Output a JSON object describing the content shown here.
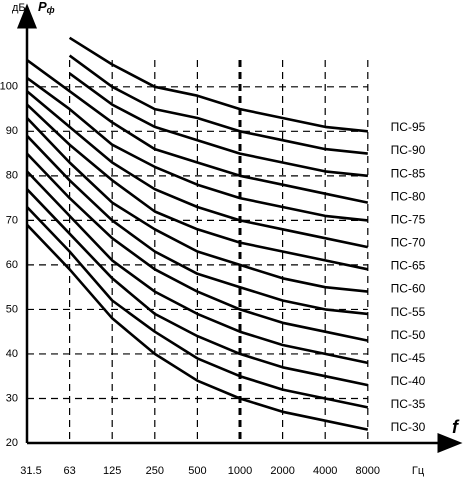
{
  "chart_data": {
    "type": "line",
    "y_unit": "дБ",
    "y_symbol": "P",
    "y_symbol_sub": "ф",
    "x_symbol": "f",
    "x_unit": "Гц",
    "categories": [
      "31.5",
      "63",
      "125",
      "250",
      "500",
      "1000",
      "2000",
      "4000",
      "8000"
    ],
    "ylim": [
      20,
      115
    ],
    "yticks": [
      20,
      30,
      40,
      50,
      60,
      70,
      80,
      90,
      100
    ],
    "grid": true,
    "series": [
      {
        "name": "ПС-95",
        "color": "#000000",
        "values": [
          null,
          111,
          105,
          100,
          98,
          95,
          93,
          91,
          90
        ]
      },
      {
        "name": "ПС-90",
        "color": "#000000",
        "values": [
          null,
          107,
          100,
          95,
          93,
          90,
          88,
          86,
          85
        ]
      },
      {
        "name": "ПС-85",
        "color": "#000000",
        "values": [
          null,
          103,
          96,
          91,
          88,
          85,
          83,
          81,
          80
        ]
      },
      {
        "name": "ПС-80",
        "color": "#000000",
        "values": [
          106,
          99,
          92,
          86,
          83,
          80,
          78,
          76,
          74
        ]
      },
      {
        "name": "ПС-75",
        "color": "#000000",
        "values": [
          102,
          95,
          87,
          82,
          78,
          75,
          73,
          71,
          70
        ]
      },
      {
        "name": "ПС-70",
        "color": "#000000",
        "values": [
          99,
          91,
          83,
          77,
          73,
          70,
          68,
          66,
          64
        ]
      },
      {
        "name": "ПС-65",
        "color": "#000000",
        "values": [
          96,
          87,
          79,
          72,
          68,
          65,
          63,
          61,
          59
        ]
      },
      {
        "name": "ПС-60",
        "color": "#000000",
        "values": [
          93,
          83,
          74,
          68,
          63,
          60,
          57,
          55,
          54
        ]
      },
      {
        "name": "ПС-55",
        "color": "#000000",
        "values": [
          89,
          79,
          70,
          63,
          58,
          55,
          52,
          50,
          49
        ]
      },
      {
        "name": "ПС-50",
        "color": "#000000",
        "values": [
          85,
          75,
          66,
          59,
          54,
          50,
          47,
          45,
          43
        ]
      },
      {
        "name": "ПС-45",
        "color": "#000000",
        "values": [
          81,
          71,
          61,
          54,
          49,
          45,
          42,
          40,
          38
        ]
      },
      {
        "name": "ПС-40",
        "color": "#000000",
        "values": [
          77,
          67,
          57,
          49,
          44,
          40,
          37,
          35,
          33
        ]
      },
      {
        "name": "ПС-35",
        "color": "#000000",
        "values": [
          73,
          63,
          52,
          45,
          39,
          35,
          32,
          30,
          28
        ]
      },
      {
        "name": "ПС-30",
        "color": "#000000",
        "values": [
          69,
          59,
          48,
          40,
          34,
          30,
          27,
          25,
          23
        ]
      }
    ]
  }
}
